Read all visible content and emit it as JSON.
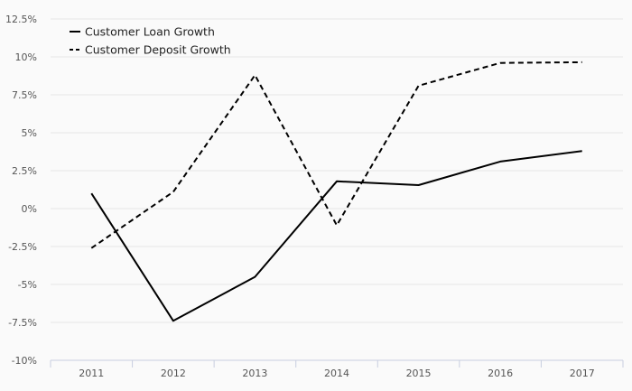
{
  "chart_data": {
    "type": "line",
    "title": "",
    "xlabel": "",
    "ylabel": "",
    "categories": [
      "2011",
      "2012",
      "2013",
      "2014",
      "2015",
      "2016",
      "2017"
    ],
    "y_ticks": [
      "12.5%",
      "10%",
      "7.5%",
      "5%",
      "2.5%",
      "0%",
      "-2.5%",
      "-5%",
      "-7.5%",
      "-10%"
    ],
    "ylim": [
      -10,
      12.5
    ],
    "y_unit": "%",
    "grid": true,
    "legend_position": "top-left",
    "series": [
      {
        "name": "Customer Loan Growth",
        "style": "solid",
        "color": "#000000",
        "values": [
          1.0,
          -7.4,
          -4.5,
          1.8,
          1.55,
          3.1,
          3.8
        ]
      },
      {
        "name": "Customer Deposit Growth",
        "style": "dashed",
        "color": "#000000",
        "values": [
          -2.6,
          1.1,
          8.8,
          -1.1,
          8.1,
          9.6,
          9.65
        ]
      }
    ]
  }
}
